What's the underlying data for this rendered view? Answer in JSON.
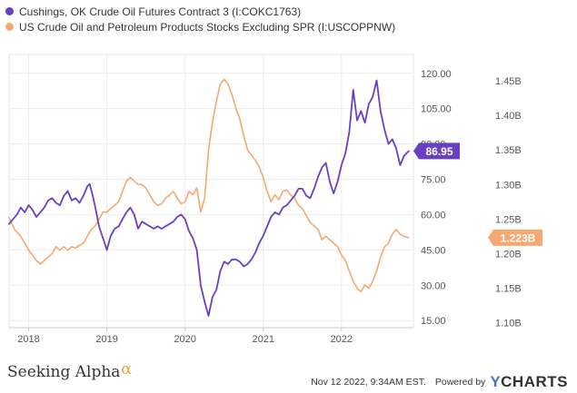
{
  "chart_data": {
    "type": "line",
    "series": [
      {
        "name": "Cushings, OK Crude Oil Futures Contract 3 (I:COKC1763)",
        "axis": "left",
        "color": "#6a3fc2",
        "last_value_label": "86.95",
        "points": [
          [
            2017.75,
            56
          ],
          [
            2017.8,
            58
          ],
          [
            2017.85,
            60
          ],
          [
            2017.9,
            63
          ],
          [
            2017.95,
            61
          ],
          [
            2018.0,
            64
          ],
          [
            2018.05,
            62
          ],
          [
            2018.1,
            59
          ],
          [
            2018.15,
            61
          ],
          [
            2018.2,
            63
          ],
          [
            2018.25,
            66
          ],
          [
            2018.3,
            67
          ],
          [
            2018.35,
            65
          ],
          [
            2018.4,
            64
          ],
          [
            2018.45,
            68
          ],
          [
            2018.5,
            70
          ],
          [
            2018.55,
            66
          ],
          [
            2018.6,
            67
          ],
          [
            2018.65,
            65
          ],
          [
            2018.7,
            68
          ],
          [
            2018.75,
            72
          ],
          [
            2018.78,
            73
          ],
          [
            2018.82,
            68
          ],
          [
            2018.86,
            62
          ],
          [
            2018.9,
            55
          ],
          [
            2018.95,
            50
          ],
          [
            2019.0,
            45
          ],
          [
            2019.05,
            51
          ],
          [
            2019.1,
            54
          ],
          [
            2019.15,
            55
          ],
          [
            2019.2,
            58
          ],
          [
            2019.25,
            61
          ],
          [
            2019.3,
            63
          ],
          [
            2019.35,
            60
          ],
          [
            2019.4,
            54
          ],
          [
            2019.45,
            57
          ],
          [
            2019.5,
            56
          ],
          [
            2019.55,
            55
          ],
          [
            2019.6,
            54
          ],
          [
            2019.65,
            55
          ],
          [
            2019.7,
            54
          ],
          [
            2019.75,
            55
          ],
          [
            2019.8,
            56
          ],
          [
            2019.85,
            57
          ],
          [
            2019.9,
            59
          ],
          [
            2019.95,
            60
          ],
          [
            2020.0,
            58
          ],
          [
            2020.05,
            53
          ],
          [
            2020.1,
            50
          ],
          [
            2020.15,
            45
          ],
          [
            2020.2,
            30
          ],
          [
            2020.25,
            23
          ],
          [
            2020.3,
            17
          ],
          [
            2020.35,
            25
          ],
          [
            2020.4,
            28
          ],
          [
            2020.45,
            36
          ],
          [
            2020.5,
            40
          ],
          [
            2020.55,
            39
          ],
          [
            2020.6,
            41
          ],
          [
            2020.65,
            41
          ],
          [
            2020.7,
            40
          ],
          [
            2020.75,
            38
          ],
          [
            2020.8,
            39
          ],
          [
            2020.85,
            41
          ],
          [
            2020.9,
            44
          ],
          [
            2020.95,
            48
          ],
          [
            2021.0,
            51
          ],
          [
            2021.05,
            55
          ],
          [
            2021.1,
            59
          ],
          [
            2021.15,
            61
          ],
          [
            2021.2,
            60
          ],
          [
            2021.25,
            63
          ],
          [
            2021.3,
            64
          ],
          [
            2021.35,
            66
          ],
          [
            2021.4,
            68
          ],
          [
            2021.45,
            71
          ],
          [
            2021.5,
            71
          ],
          [
            2021.55,
            68
          ],
          [
            2021.6,
            67
          ],
          [
            2021.65,
            71
          ],
          [
            2021.7,
            76
          ],
          [
            2021.75,
            80
          ],
          [
            2021.8,
            82
          ],
          [
            2021.85,
            74
          ],
          [
            2021.9,
            69
          ],
          [
            2021.95,
            74
          ],
          [
            2022.0,
            81
          ],
          [
            2022.05,
            86
          ],
          [
            2022.1,
            95
          ],
          [
            2022.15,
            113
          ],
          [
            2022.2,
            100
          ],
          [
            2022.25,
            104
          ],
          [
            2022.3,
            99
          ],
          [
            2022.35,
            107
          ],
          [
            2022.4,
            110
          ],
          [
            2022.45,
            117
          ],
          [
            2022.5,
            104
          ],
          [
            2022.55,
            96
          ],
          [
            2022.6,
            90
          ],
          [
            2022.65,
            92
          ],
          [
            2022.7,
            88
          ],
          [
            2022.75,
            81
          ],
          [
            2022.8,
            85
          ],
          [
            2022.86,
            87
          ]
        ]
      },
      {
        "name": "US Crude Oil and Petroleum Products Stocks Excluding SPR (I:USCOPPNW)",
        "axis": "right",
        "color": "#f5a870",
        "last_value_label": "1.223B",
        "points": [
          [
            2017.75,
            1.252
          ],
          [
            2017.82,
            1.235
          ],
          [
            2017.9,
            1.225
          ],
          [
            2017.95,
            1.215
          ],
          [
            2018.0,
            1.205
          ],
          [
            2018.05,
            1.198
          ],
          [
            2018.1,
            1.19
          ],
          [
            2018.15,
            1.185
          ],
          [
            2018.2,
            1.19
          ],
          [
            2018.25,
            1.195
          ],
          [
            2018.3,
            1.2
          ],
          [
            2018.35,
            1.21
          ],
          [
            2018.4,
            1.205
          ],
          [
            2018.45,
            1.21
          ],
          [
            2018.5,
            1.205
          ],
          [
            2018.55,
            1.21
          ],
          [
            2018.6,
            1.208
          ],
          [
            2018.65,
            1.212
          ],
          [
            2018.7,
            1.215
          ],
          [
            2018.75,
            1.225
          ],
          [
            2018.8,
            1.235
          ],
          [
            2018.85,
            1.24
          ],
          [
            2018.9,
            1.25
          ],
          [
            2018.95,
            1.26
          ],
          [
            2019.0,
            1.26
          ],
          [
            2019.05,
            1.265
          ],
          [
            2019.1,
            1.27
          ],
          [
            2019.15,
            1.275
          ],
          [
            2019.2,
            1.29
          ],
          [
            2019.25,
            1.305
          ],
          [
            2019.3,
            1.31
          ],
          [
            2019.35,
            1.305
          ],
          [
            2019.4,
            1.3
          ],
          [
            2019.45,
            1.3
          ],
          [
            2019.5,
            1.295
          ],
          [
            2019.55,
            1.285
          ],
          [
            2019.6,
            1.275
          ],
          [
            2019.65,
            1.27
          ],
          [
            2019.7,
            1.272
          ],
          [
            2019.75,
            1.28
          ],
          [
            2019.8,
            1.285
          ],
          [
            2019.85,
            1.29
          ],
          [
            2019.9,
            1.28
          ],
          [
            2019.95,
            1.272
          ],
          [
            2020.0,
            1.275
          ],
          [
            2020.05,
            1.29
          ],
          [
            2020.1,
            1.285
          ],
          [
            2020.15,
            1.295
          ],
          [
            2020.2,
            1.26
          ],
          [
            2020.25,
            1.28
          ],
          [
            2020.3,
            1.35
          ],
          [
            2020.35,
            1.39
          ],
          [
            2020.4,
            1.42
          ],
          [
            2020.45,
            1.445
          ],
          [
            2020.5,
            1.452
          ],
          [
            2020.55,
            1.445
          ],
          [
            2020.6,
            1.43
          ],
          [
            2020.65,
            1.41
          ],
          [
            2020.7,
            1.395
          ],
          [
            2020.75,
            1.37
          ],
          [
            2020.8,
            1.35
          ],
          [
            2020.85,
            1.342
          ],
          [
            2020.9,
            1.335
          ],
          [
            2020.95,
            1.325
          ],
          [
            2021.0,
            1.31
          ],
          [
            2021.05,
            1.29
          ],
          [
            2021.1,
            1.275
          ],
          [
            2021.15,
            1.285
          ],
          [
            2021.2,
            1.278
          ],
          [
            2021.25,
            1.29
          ],
          [
            2021.3,
            1.292
          ],
          [
            2021.35,
            1.285
          ],
          [
            2021.4,
            1.28
          ],
          [
            2021.45,
            1.27
          ],
          [
            2021.5,
            1.265
          ],
          [
            2021.55,
            1.255
          ],
          [
            2021.6,
            1.245
          ],
          [
            2021.65,
            1.24
          ],
          [
            2021.7,
            1.235
          ],
          [
            2021.75,
            1.22
          ],
          [
            2021.8,
            1.225
          ],
          [
            2021.85,
            1.22
          ],
          [
            2021.9,
            1.215
          ],
          [
            2021.95,
            1.21
          ],
          [
            2022.0,
            1.198
          ],
          [
            2022.05,
            1.19
          ],
          [
            2022.1,
            1.175
          ],
          [
            2022.15,
            1.16
          ],
          [
            2022.2,
            1.15
          ],
          [
            2022.25,
            1.145
          ],
          [
            2022.3,
            1.155
          ],
          [
            2022.35,
            1.15
          ],
          [
            2022.4,
            1.16
          ],
          [
            2022.45,
            1.175
          ],
          [
            2022.5,
            1.195
          ],
          [
            2022.55,
            1.21
          ],
          [
            2022.6,
            1.215
          ],
          [
            2022.65,
            1.228
          ],
          [
            2022.7,
            1.235
          ],
          [
            2022.75,
            1.228
          ],
          [
            2022.8,
            1.225
          ],
          [
            2022.86,
            1.223
          ]
        ]
      }
    ],
    "left_axis": {
      "ticks": [
        "15.00",
        "30.00",
        "45.00",
        "60.00",
        "75.00",
        "90.00",
        "105.00",
        "120.00"
      ],
      "ylim": [
        12,
        128
      ]
    },
    "right_axis": {
      "ticks": [
        "1.10B",
        "1.15B",
        "1.20B",
        "1.25B",
        "1.30B",
        "1.35B",
        "1.40B",
        "1.45B"
      ],
      "ylim": [
        1.093,
        1.488
      ]
    },
    "x_axis": {
      "ticks": [
        "2018",
        "2019",
        "2020",
        "2021",
        "2022"
      ],
      "xlim": [
        2017.75,
        2022.92
      ]
    },
    "grid": true
  },
  "legend": [
    {
      "label": "Cushings, OK Crude Oil Futures Contract 3 (I:COKC1763)",
      "color": "#6a3fc2"
    },
    {
      "label": "US Crude Oil and Petroleum Products Stocks Excluding SPR (I:USCOPPNW)",
      "color": "#f5a870"
    }
  ],
  "footer": {
    "brand": "Seeking Alpha",
    "brand_mark": "α",
    "timestamp": "Nov 12 2022, 9:34AM EST.",
    "powered_by": "Powered by",
    "ycharts_y": "Y",
    "ycharts_rest": "CHARTS"
  }
}
